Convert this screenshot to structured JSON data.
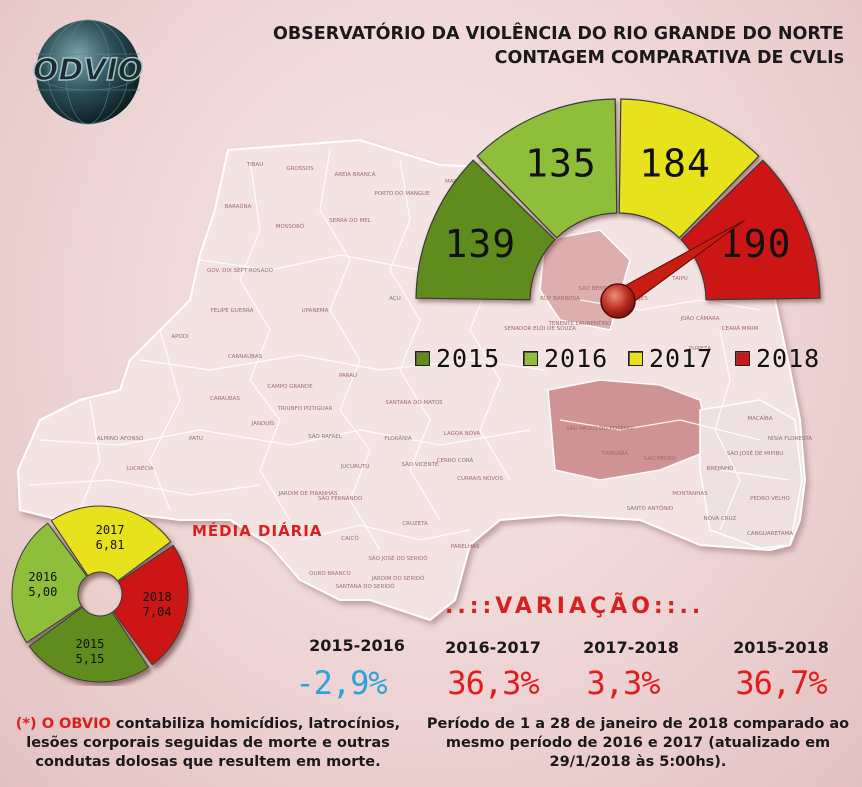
{
  "header": {
    "logo_text": "ODVIO",
    "title_line1": "OBSERVATÓRIO DA VIOLÊNCIA DO RIO GRANDE DO NORTE",
    "title_line2": "CONTAGEM COMPARATIVA DE CVLIs"
  },
  "chart_data": [
    {
      "type": "gauge",
      "categories": [
        "2015",
        "2016",
        "2017",
        "2018"
      ],
      "values": [
        139,
        135,
        184,
        190
      ],
      "colors": [
        "#5e8c1e",
        "#8fbe3a",
        "#e7e21a",
        "#cc1515"
      ],
      "needle_points_to": "2018",
      "legend": "below"
    },
    {
      "type": "pie",
      "title": "MÉDIA DIÁRIA",
      "categories": [
        "2017",
        "2018",
        "2015",
        "2016"
      ],
      "values": [
        6.81,
        7.04,
        5.15,
        5.0
      ],
      "labels": [
        "6,81",
        "7,04",
        "5,15",
        "5,00"
      ],
      "colors": [
        "#e7e21a",
        "#cc1515",
        "#5e8c1e",
        "#8fbe3a"
      ]
    }
  ],
  "legend": [
    {
      "label": "2015",
      "color": "#5e8c1e"
    },
    {
      "label": "2016",
      "color": "#8fbe3a"
    },
    {
      "label": "2017",
      "color": "#e7e21a"
    },
    {
      "label": "2018",
      "color": "#cc1515"
    }
  ],
  "variation": {
    "title": "..::VARIAÇÃO::..",
    "items": [
      {
        "period": "2015-2016",
        "value": "-2,9%",
        "color": "#2aa3d8"
      },
      {
        "period": "2016-2017",
        "value": "36,3%",
        "color": "#e21b1b"
      },
      {
        "period": "2017-2018",
        "value": "3,3%",
        "color": "#e21b1b"
      },
      {
        "period": "2015-2018",
        "value": "36,7%",
        "color": "#e21b1b"
      }
    ]
  },
  "notes": {
    "left_prefix": "(*) ",
    "left_brand": "O OBVIO",
    "left_body": " contabiliza homicídios, latrocínios, lesões corporais seguidas de morte e outras condutas dolosas que resultem em morte.",
    "right": "Período de 1 a 28 de janeiro de 2018 comparado ao mesmo período de 2016 e 2017 (atualizado em 29/1/2018 às 5:00hs)."
  },
  "map": {
    "labels": [
      "TIBAU",
      "GROSSOS",
      "AREIA BRANCA",
      "PORTO DO MANGUE",
      "MACAU",
      "GUAMARÉ",
      "BARAÚNA",
      "MOSSORÓ",
      "SERRA DO MEL",
      "GOV. DIX SEPT ROSADO",
      "FELIPE GUERRA",
      "APODI",
      "UPANEMA",
      "AÇU",
      "CARNAÚBAS",
      "CAMPO GRANDE",
      "PARAÚ",
      "TRIUNFO POTIGUAR",
      "JANDUÍS",
      "CARAÚBAS",
      "PATU",
      "ALMINO AFONSO",
      "LUCRÉCIA",
      "SÃO RAFAEL",
      "SANTANA DO MATOS",
      "JUCURUTU",
      "FLORÂNIA",
      "LAGOA NOVA",
      "CERRO CORÁ",
      "SÃO VICENTE",
      "CURRAIS NOVOS",
      "JARDIM DE PIRANHAS",
      "SÃO FERNANDO",
      "CAICÓ",
      "CRUZETA",
      "SÃO JOSÉ DO SERIDÓ",
      "JARDIM DO SERIDÓ",
      "PARELHAS",
      "OURO BRANCO",
      "SANTANA DO SERIDÓ",
      "SÃO PAULO DO POTENGI",
      "TANGARÁ",
      "SANTO ANTÔNIO",
      "MONTANHAS",
      "NOVA CRUZ",
      "CANGUARETAMA",
      "SÃO JOSÉ DE MIPIBU",
      "NÍSIA FLORESTA",
      "MACAÍBA",
      "CEARÁ MIRIM",
      "JOÃO CÂMARA",
      "LAJES",
      "TAIPU",
      "TOUROS",
      "SÃO BENTO DO NORTE",
      "PUREZA",
      "BREJINHO",
      "PEDRO VELHO",
      "SÃO PEDRO",
      "RUY BARBOSA",
      "TENENTE LAURENTINO",
      "SENADOR ELÓI DE SOUZA"
    ]
  }
}
